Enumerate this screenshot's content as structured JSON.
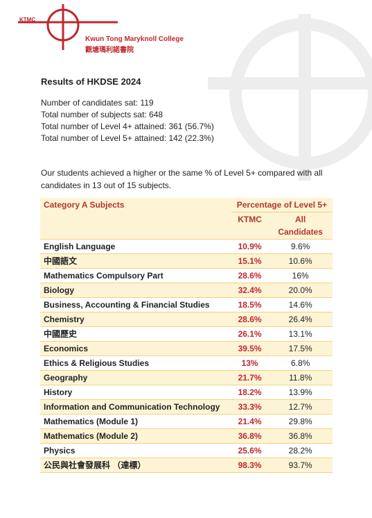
{
  "logo": {
    "abbr": "KTMC",
    "name_en": "Kwun Tong Maryknoll College",
    "name_zh": "觀塘瑪利諾書院"
  },
  "title": "Results of HKDSE 2024",
  "stats": [
    "Number of candidates sat: 119",
    "Total number of subjects sat:  648",
    "Total number of Level 4+ attained: 361 (56.7%)",
    "Total number of Level 5+ attained: 142 (22.3%)"
  ],
  "summary": "Our students achieved a higher or the same % of Level 5+ compared with all candidates in 13 out of 15 subjects.",
  "table": {
    "header": {
      "subject": "Category A Subjects",
      "group": "Percentage of Level 5+",
      "ktmc": "KTMC",
      "all": "All Candidates"
    },
    "rows": [
      [
        "English Language",
        "10.9%",
        "9.6%"
      ],
      [
        "中國語文",
        "15.1%",
        "10.6%"
      ],
      [
        "Mathematics Compulsory Part",
        "28.6%",
        "16%"
      ],
      [
        "Biology",
        "32.4%",
        "20.0%"
      ],
      [
        "Business, Accounting & Financial Studies",
        "18.5%",
        "14.6%"
      ],
      [
        "Chemistry",
        "28.6%",
        "26.4%"
      ],
      [
        "中國歷史",
        "26.1%",
        "13.1%"
      ],
      [
        "Economics",
        "39.5%",
        "17.5%"
      ],
      [
        "Ethics & Religious Studies",
        "13%",
        "6.8%"
      ],
      [
        "Geography",
        "21.7%",
        "11.8%"
      ],
      [
        "History",
        "18.2%",
        "13.9%"
      ],
      [
        "Information and Communication Technology",
        "33.3%",
        "12.7%"
      ],
      [
        "Mathematics (Module 1)",
        "21.4%",
        "29.8%"
      ],
      [
        "Mathematics (Module 2)",
        "36.8%",
        "36.8%"
      ],
      [
        "Physics",
        "25.6%",
        "28.2%"
      ],
      [
        "公民與社會發展科 （達標）",
        "98.3%",
        "93.7%"
      ]
    ]
  }
}
